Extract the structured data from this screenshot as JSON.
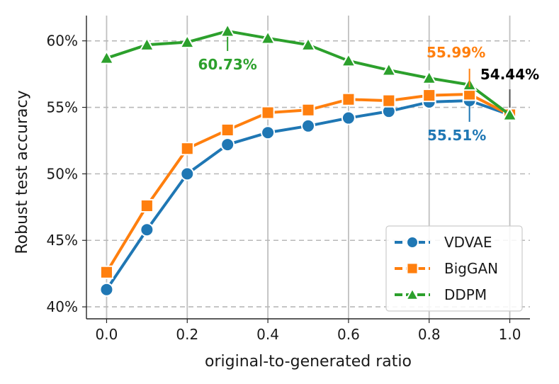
{
  "chart_data": {
    "type": "line",
    "title": "",
    "xlabel": "original-to-generated ratio",
    "ylabel": "Robust test accuracy",
    "xlim": [
      -0.05,
      1.05
    ],
    "ylim": [
      39.1,
      61.9
    ],
    "xticks": [
      0.0,
      0.2,
      0.4,
      0.6,
      0.8,
      1.0
    ],
    "xtick_labels": [
      "0.0",
      "0.2",
      "0.4",
      "0.6",
      "0.8",
      "1.0"
    ],
    "yticks": [
      40,
      45,
      50,
      55,
      60
    ],
    "ytick_labels": [
      "40%",
      "45%",
      "50%",
      "55%",
      "60%"
    ],
    "grid": "on",
    "legend_position": "bottom-right",
    "x": [
      0.0,
      0.1,
      0.2,
      0.3,
      0.4,
      0.5,
      0.6,
      0.7,
      0.8,
      0.9,
      1.0
    ],
    "series": [
      {
        "name": "VDVAE",
        "color": "#1f77b4",
        "marker": "circle",
        "values": [
          41.3,
          45.8,
          50.0,
          52.2,
          53.1,
          53.6,
          54.2,
          54.7,
          55.4,
          55.51,
          54.44
        ]
      },
      {
        "name": "BigGAN",
        "color": "#ff7f0e",
        "marker": "square",
        "values": [
          42.6,
          47.6,
          51.9,
          53.3,
          54.6,
          54.8,
          55.6,
          55.5,
          55.9,
          55.99,
          54.44
        ]
      },
      {
        "name": "DDPM",
        "color": "#2ca02c",
        "marker": "triangle",
        "values": [
          58.7,
          59.7,
          59.9,
          60.73,
          60.2,
          59.7,
          58.5,
          57.8,
          57.2,
          56.7,
          54.44
        ]
      }
    ],
    "annotations": [
      {
        "text": "60.73%",
        "series": "DDPM",
        "x": 0.3,
        "y": 60.73,
        "color": "#2ca02c"
      },
      {
        "text": "55.99%",
        "series": "BigGAN",
        "x": 0.9,
        "y": 55.99,
        "color": "#ff7f0e"
      },
      {
        "text": "54.44%",
        "series": "all",
        "x": 1.0,
        "y": 54.44,
        "color": "#000000"
      },
      {
        "text": "55.51%",
        "series": "VDVAE",
        "x": 0.9,
        "y": 55.51,
        "color": "#1f77b4"
      }
    ]
  }
}
